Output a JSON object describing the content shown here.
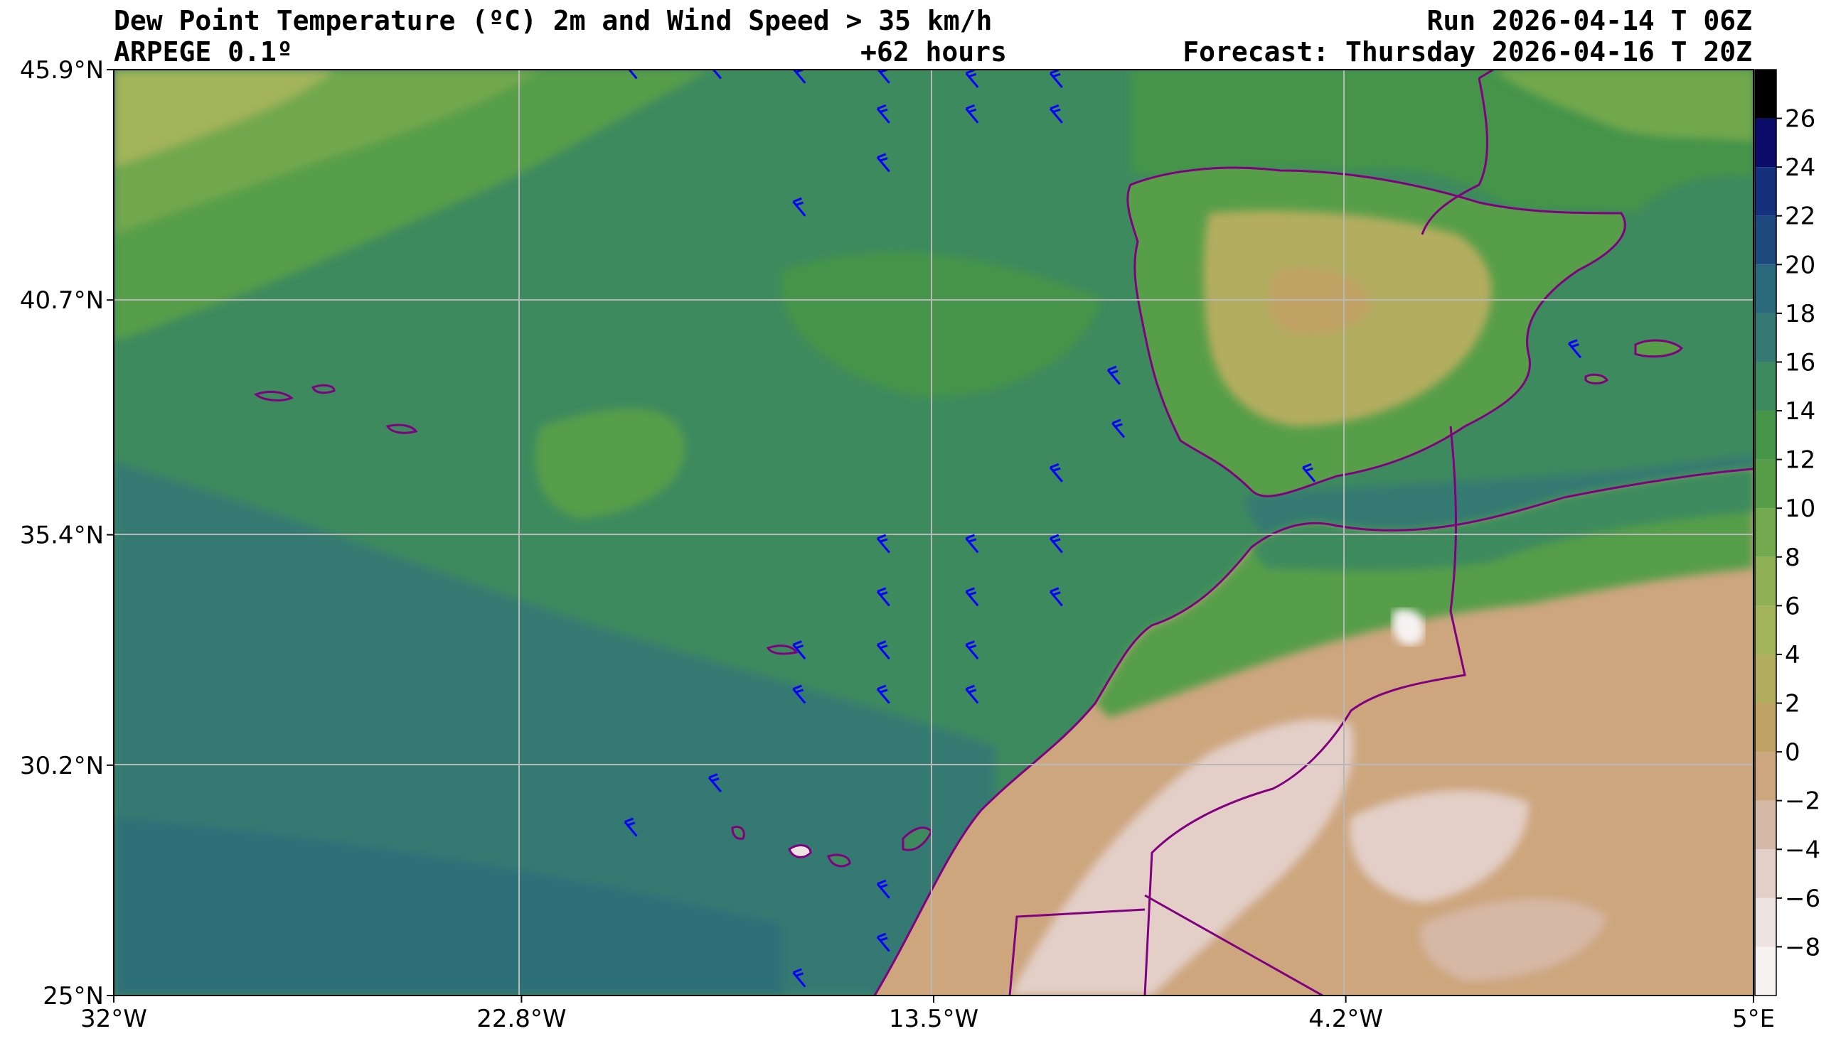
{
  "header": {
    "title_line1": "Dew Point Temperature (ºC) 2m and Wind Speed > 35 km/h",
    "title_line2": "ARPEGE 0.1º",
    "lead_time": "+62 hours",
    "run": "Run 2026-04-14 T 06Z",
    "forecast": "Forecast: Thursday 2026-04-16 T 20Z"
  },
  "chart_data": {
    "type": "heatmap",
    "title": "Dew Point Temperature (ºC) 2m and Wind Speed > 35 km/h",
    "xlim": [
      -32,
      5
    ],
    "ylim": [
      25,
      45.9
    ],
    "x_ticks": [
      {
        "value": -32,
        "label": "32°W"
      },
      {
        "value": -22.8,
        "label": "22.8°W"
      },
      {
        "value": -13.5,
        "label": "13.5°W"
      },
      {
        "value": -4.2,
        "label": "4.2°W"
      },
      {
        "value": 5,
        "label": "5°E"
      }
    ],
    "y_ticks": [
      {
        "value": 45.9,
        "label": "45.9°N"
      },
      {
        "value": 40.7,
        "label": "40.7°N"
      },
      {
        "value": 35.4,
        "label": "35.4°N"
      },
      {
        "value": 30.2,
        "label": "30.2°N"
      },
      {
        "value": 25,
        "label": "25°N"
      }
    ],
    "grid": true,
    "colorbar": {
      "position": "right",
      "ticks": [
        26,
        24,
        22,
        20,
        18,
        16,
        14,
        12,
        10,
        8,
        6,
        4,
        2,
        0,
        -2,
        -4,
        -6,
        -8
      ],
      "tick_labels": [
        "26",
        "24",
        "22",
        "20",
        "18",
        "16",
        "14",
        "12",
        "10",
        "8",
        "6",
        "4",
        "2",
        "0",
        "−2",
        "−4",
        "−6",
        "−8"
      ],
      "range": [
        -10,
        28
      ],
      "levels": [
        {
          "from": -10,
          "to": -8,
          "color": "#f7f3f2"
        },
        {
          "from": -8,
          "to": -6,
          "color": "#ede3e1"
        },
        {
          "from": -6,
          "to": -4,
          "color": "#e3cfc8"
        },
        {
          "from": -4,
          "to": -2,
          "color": "#d6b8a6"
        },
        {
          "from": -2,
          "to": 0,
          "color": "#cda67e"
        },
        {
          "from": 0,
          "to": 2,
          "color": "#c1a265"
        },
        {
          "from": 2,
          "to": 4,
          "color": "#b3ad5f"
        },
        {
          "from": 4,
          "to": 6,
          "color": "#a3b45a"
        },
        {
          "from": 6,
          "to": 8,
          "color": "#8fb054"
        },
        {
          "from": 8,
          "to": 10,
          "color": "#72a84e"
        },
        {
          "from": 10,
          "to": 12,
          "color": "#579e48"
        },
        {
          "from": 12,
          "to": 14,
          "color": "#459448"
        },
        {
          "from": 14,
          "to": 16,
          "color": "#3d8a5e"
        },
        {
          "from": 16,
          "to": 18,
          "color": "#357a72"
        },
        {
          "from": 18,
          "to": 20,
          "color": "#2b6a7c"
        },
        {
          "from": 20,
          "to": 22,
          "color": "#1f4a80"
        },
        {
          "from": 22,
          "to": 24,
          "color": "#15307c"
        },
        {
          "from": 24,
          "to": 26,
          "color": "#0c0c6a"
        },
        {
          "from": 26,
          "to": 28,
          "color": "#000000"
        }
      ]
    },
    "wind_barbs": [
      {
        "lon": -12.5,
        "lat": 45.5
      },
      {
        "lon": -10.6,
        "lat": 45.5
      },
      {
        "lon": -14.5,
        "lat": 45.6
      },
      {
        "lon": -16.4,
        "lat": 45.6
      },
      {
        "lon": -18.3,
        "lat": 45.7
      },
      {
        "lon": -20.2,
        "lat": 45.7
      },
      {
        "lon": -14.5,
        "lat": 44.7
      },
      {
        "lon": -12.5,
        "lat": 44.7
      },
      {
        "lon": -10.6,
        "lat": 44.7
      },
      {
        "lon": -14.5,
        "lat": 43.6
      },
      {
        "lon": -16.4,
        "lat": 42.6
      },
      {
        "lon": -9.3,
        "lat": 38.8
      },
      {
        "lon": -9.2,
        "lat": 37.6
      },
      {
        "lon": -4.9,
        "lat": 36.6
      },
      {
        "lon": 1.1,
        "lat": 39.4
      },
      {
        "lon": -10.6,
        "lat": 36.6
      },
      {
        "lon": -14.5,
        "lat": 35.0
      },
      {
        "lon": -12.5,
        "lat": 35.0
      },
      {
        "lon": -10.6,
        "lat": 35.0
      },
      {
        "lon": -14.5,
        "lat": 33.8
      },
      {
        "lon": -12.5,
        "lat": 33.8
      },
      {
        "lon": -10.6,
        "lat": 33.8
      },
      {
        "lon": -16.4,
        "lat": 32.6
      },
      {
        "lon": -14.5,
        "lat": 32.6
      },
      {
        "lon": -12.5,
        "lat": 32.6
      },
      {
        "lon": -16.4,
        "lat": 31.6
      },
      {
        "lon": -14.5,
        "lat": 31.6
      },
      {
        "lon": -12.5,
        "lat": 31.6
      },
      {
        "lon": -18.3,
        "lat": 29.6
      },
      {
        "lon": -20.2,
        "lat": 28.6
      },
      {
        "lon": -14.5,
        "lat": 27.2
      },
      {
        "lon": -14.5,
        "lat": 26.0
      },
      {
        "lon": -16.4,
        "lat": 25.2
      }
    ]
  }
}
